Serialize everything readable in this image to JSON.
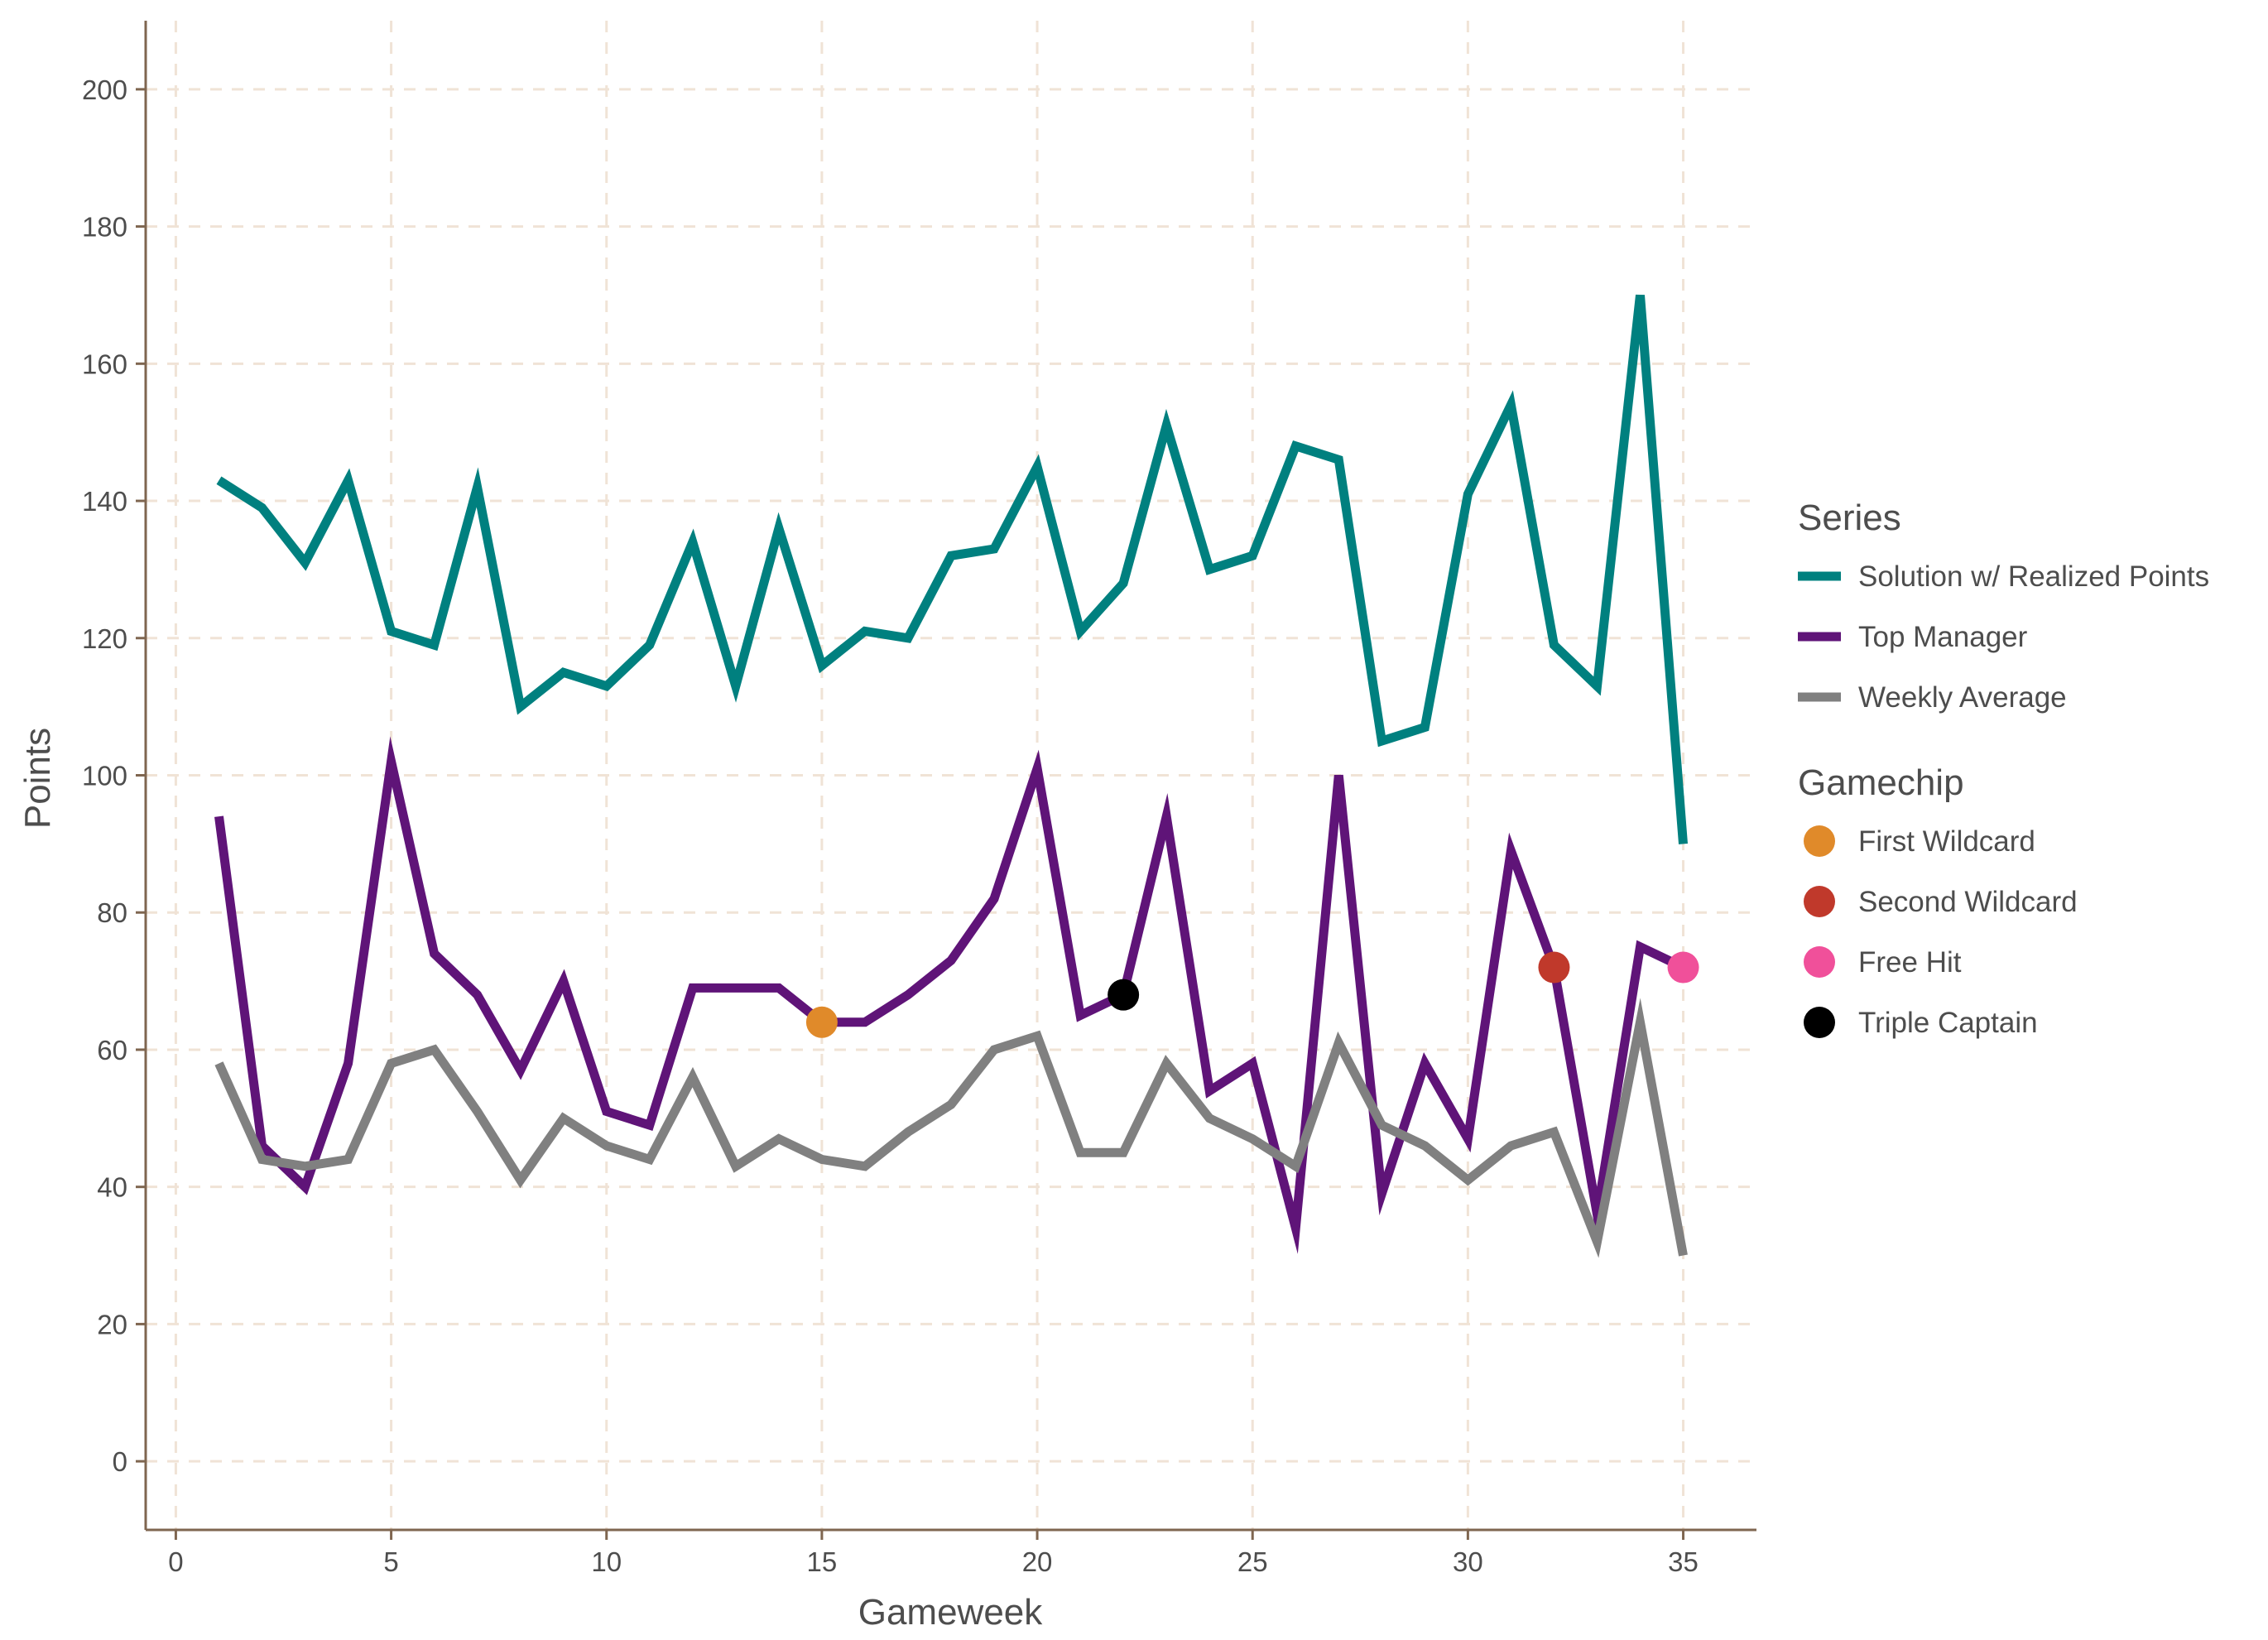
{
  "chart_data": {
    "type": "line",
    "xlabel": "Gameweek",
    "ylabel": "Points",
    "xlim": [
      -0.7,
      36.7
    ],
    "ylim": [
      -10,
      210
    ],
    "xticks": [
      0,
      5,
      10,
      15,
      20,
      25,
      30,
      35
    ],
    "yticks": [
      0,
      20,
      40,
      60,
      80,
      100,
      120,
      140,
      160,
      180,
      200
    ],
    "grid": true,
    "legend_position": "right",
    "x": [
      1,
      2,
      3,
      4,
      5,
      6,
      7,
      8,
      9,
      10,
      11,
      12,
      13,
      14,
      15,
      16,
      17,
      18,
      19,
      20,
      21,
      22,
      23,
      24,
      25,
      26,
      27,
      28,
      29,
      30,
      31,
      32,
      33,
      34,
      35
    ],
    "series": [
      {
        "name": "Solution w/ Realized Points",
        "color": "#00807f",
        "values": [
          143,
          139,
          131,
          143,
          121,
          119,
          142,
          110,
          115,
          113,
          119,
          134,
          113,
          136,
          116,
          121,
          120,
          132,
          133,
          145,
          121,
          128,
          151,
          130,
          132,
          148,
          146,
          105,
          107,
          141,
          154,
          119,
          113,
          170,
          90
        ]
      },
      {
        "name": "Top Manager",
        "color": "#5f1478",
        "values": [
          94,
          46,
          40,
          58,
          102,
          74,
          68,
          57,
          70,
          51,
          49,
          69,
          69,
          69,
          64,
          64,
          68,
          73,
          82,
          101,
          65,
          68,
          94,
          54,
          58,
          34,
          100,
          39,
          58,
          47,
          89,
          72,
          36,
          75,
          72
        ]
      },
      {
        "name": "Weekly Average",
        "color": "#808080",
        "values": [
          58,
          44,
          43,
          44,
          58,
          60,
          51,
          41,
          50,
          46,
          44,
          56,
          43,
          47,
          44,
          43,
          48,
          52,
          60,
          62,
          45,
          45,
          58,
          50,
          47,
          43,
          61,
          49,
          46,
          41,
          46,
          48,
          32,
          64,
          30
        ]
      }
    ],
    "gamechips": [
      {
        "name": "First Wildcard",
        "x": 15,
        "y": 64,
        "color": "#e08a2a"
      },
      {
        "name": "Second Wildcard",
        "x": 32,
        "y": 72,
        "color": "#c0392b"
      },
      {
        "name": "Free Hit",
        "x": 35,
        "y": 72,
        "color": "#f0509a"
      },
      {
        "name": "Triple Captain",
        "x": 22,
        "y": 68,
        "color": "#000000"
      }
    ],
    "legend": {
      "series_title": "Series",
      "gamechip_title": "Gamechip"
    },
    "colors": {
      "axis": "#7f6650",
      "grid": "#f0e3d6",
      "text": "#4d4d4d"
    }
  }
}
